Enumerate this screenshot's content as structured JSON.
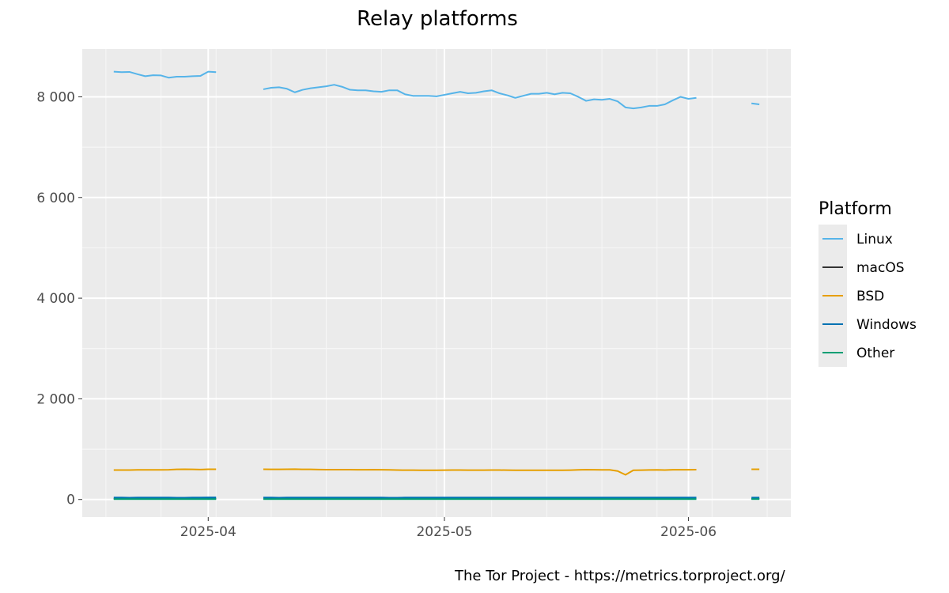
{
  "chart_data": {
    "type": "line",
    "title": "Relay platforms",
    "xlabel": "",
    "ylabel": "",
    "x_start": "2025-03-20",
    "x_ticks": [
      "2025-04",
      "2025-05",
      "2025-06"
    ],
    "x_tick_dates": [
      "2025-04-01",
      "2025-05-01",
      "2025-06-01"
    ],
    "xlim": [
      "2025-03-16",
      "2025-06-14"
    ],
    "y_ticks": [
      0,
      2000,
      4000,
      6000,
      8000
    ],
    "y_tick_labels": [
      "0",
      "2 000",
      "4 000",
      "6 000",
      "8 000"
    ],
    "ylim": [
      -350,
      8950
    ],
    "grid": true,
    "legend": {
      "title": "Platform",
      "position": "right",
      "entries": [
        "Linux",
        "macOS",
        "BSD",
        "Windows",
        "Other"
      ]
    },
    "colors": {
      "Linux": "#56b4e9",
      "macOS": "#333333",
      "BSD": "#e69f00",
      "Windows": "#0072b2",
      "Other": "#009e73"
    },
    "series": [
      {
        "name": "Linux",
        "segments": [
          {
            "start": "2025-03-20",
            "values": [
              8500,
              8490,
              8495,
              8450,
              8410,
              8430,
              8425,
              8380,
              8400,
              8400,
              8410,
              8415,
              8500,
              8490
            ]
          },
          {
            "start": "2025-04-08",
            "values": [
              8150,
              8180,
              8190,
              8160,
              8090,
              8140,
              8170,
              8190,
              8210,
              8240,
              8200,
              8140,
              8130,
              8130,
              8110,
              8100,
              8130,
              8130,
              8050,
              8020,
              8020,
              8020,
              8010,
              8040,
              8070,
              8100,
              8070,
              8080,
              8110,
              8130,
              8070,
              8030,
              7980,
              8020,
              8060,
              8060,
              8080,
              8050,
              8080,
              8070,
              8000,
              7920,
              7950,
              7940,
              7960,
              7910,
              7790,
              7770,
              7790,
              7820,
              7820,
              7850,
              7930,
              8000,
              7960,
              7980
            ]
          },
          {
            "start": "2025-06-09",
            "values": [
              7870,
              7850
            ]
          }
        ]
      },
      {
        "name": "macOS",
        "segments": [
          {
            "start": "2025-03-20",
            "values": [
              15,
              15,
              15,
              15,
              15,
              15,
              15,
              15,
              15,
              15,
              15,
              15,
              15,
              15
            ]
          },
          {
            "start": "2025-04-08",
            "values": [
              15,
              15,
              15,
              15,
              15,
              15,
              15,
              15,
              15,
              15,
              15,
              15,
              15,
              15,
              15,
              15,
              15,
              15,
              15,
              15,
              15,
              15,
              15,
              15,
              15,
              15,
              15,
              15,
              15,
              15,
              15,
              15,
              15,
              15,
              15,
              15,
              15,
              15,
              15,
              15,
              15,
              15,
              15,
              15,
              15,
              15,
              15,
              15,
              15,
              15,
              15,
              15,
              15,
              15,
              15,
              15
            ]
          },
          {
            "start": "2025-06-09",
            "values": [
              15,
              15
            ]
          }
        ]
      },
      {
        "name": "BSD",
        "segments": [
          {
            "start": "2025-03-20",
            "values": [
              585,
              585,
              585,
              588,
              588,
              588,
              588,
              590,
              598,
              600,
              598,
              595,
              600,
              600
            ]
          },
          {
            "start": "2025-04-08",
            "values": [
              600,
              598,
              598,
              600,
              602,
              598,
              598,
              595,
              593,
              592,
              592,
              592,
              590,
              590,
              592,
              590,
              588,
              585,
              582,
              582,
              580,
              580,
              580,
              582,
              585,
              585,
              582,
              582,
              583,
              585,
              585,
              582,
              580,
              580,
              580,
              580,
              580,
              580,
              580,
              583,
              588,
              592,
              590,
              588,
              588,
              565,
              490,
              580,
              582,
              586,
              588,
              585,
              590,
              590,
              590,
              593
            ]
          },
          {
            "start": "2025-06-09",
            "values": [
              600,
              600
            ]
          }
        ]
      },
      {
        "name": "Windows",
        "segments": [
          {
            "start": "2025-03-20",
            "values": [
              30,
              30,
              28,
              30,
              30,
              30,
              30,
              30,
              28,
              28,
              30,
              30,
              32,
              32
            ]
          },
          {
            "start": "2025-04-08",
            "values": [
              30,
              30,
              28,
              30,
              30,
              30,
              30,
              30,
              30,
              30,
              30,
              30,
              30,
              30,
              30,
              30,
              28,
              28,
              30,
              30,
              30,
              30,
              30,
              30,
              30,
              30,
              30,
              30,
              30,
              30,
              30,
              30,
              30,
              30,
              30,
              30,
              30,
              30,
              30,
              30,
              30,
              30,
              30,
              30,
              30,
              30,
              30,
              30,
              30,
              30,
              30,
              30,
              30,
              30,
              30,
              30
            ]
          },
          {
            "start": "2025-06-09",
            "values": [
              30,
              30
            ]
          }
        ]
      },
      {
        "name": "Other",
        "segments": [
          {
            "start": "2025-03-20",
            "values": [
              8,
              8,
              8,
              8,
              8,
              8,
              8,
              8,
              8,
              8,
              8,
              8,
              8,
              8
            ]
          },
          {
            "start": "2025-04-08",
            "values": [
              8,
              8,
              8,
              8,
              8,
              8,
              8,
              8,
              8,
              8,
              8,
              8,
              8,
              8,
              8,
              8,
              8,
              8,
              8,
              8,
              8,
              8,
              8,
              8,
              8,
              8,
              8,
              8,
              8,
              8,
              8,
              8,
              8,
              8,
              8,
              8,
              8,
              8,
              8,
              8,
              8,
              8,
              8,
              8,
              8,
              8,
              8,
              8,
              8,
              8,
              8,
              8,
              8,
              8,
              8,
              8
            ]
          },
          {
            "start": "2025-06-09",
            "values": [
              8,
              8
            ]
          }
        ]
      }
    ]
  },
  "caption": "The Tor Project - https://metrics.torproject.org/"
}
